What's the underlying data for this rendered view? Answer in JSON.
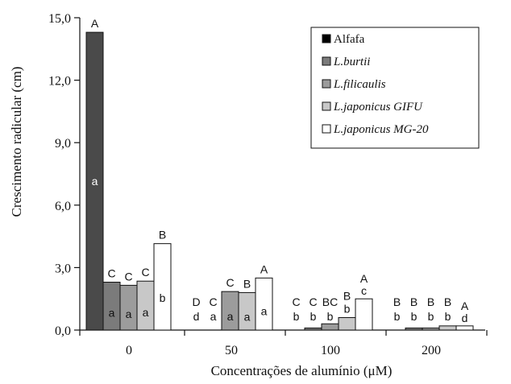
{
  "chart_data": {
    "type": "bar",
    "ylabel": "Crescimento radicular (cm)",
    "xlabel": "Concentrações de alumínio (μM)",
    "ylim": [
      0,
      15
    ],
    "yticks": [
      "0,0",
      "3,0",
      "6,0",
      "9,0",
      "12,0",
      "15,0"
    ],
    "categories": [
      "0",
      "50",
      "100",
      "200"
    ],
    "legend_position": "top-right",
    "series": [
      {
        "name": "Alfafa",
        "color": "#4a4a4a",
        "values": [
          14.3,
          0,
          0,
          0
        ],
        "upper": [
          "A",
          "",
          "",
          ""
        ],
        "lower": [
          "a",
          "",
          "",
          ""
        ]
      },
      {
        "name": "L.burtii",
        "color": "#7b7b7b",
        "values": [
          2.3,
          0,
          0.1,
          0.1
        ],
        "upper": [
          "C",
          "D",
          "C",
          "B"
        ],
        "lower": [
          "a",
          "d",
          "b",
          "b"
        ]
      },
      {
        "name": "L.filicaulis",
        "color": "#9c9c9c",
        "values": [
          2.15,
          1.85,
          0.3,
          0.1
        ],
        "upper": [
          "C",
          "C",
          "C",
          "B"
        ],
        "lower": [
          "a",
          "a",
          "b",
          "b"
        ]
      },
      {
        "name": "L.japonicus GIFU",
        "color": "#c8c8c8",
        "values": [
          2.35,
          1.8,
          0.6,
          0.2
        ],
        "upper": [
          "C",
          "C",
          "BC",
          "B"
        ],
        "lower": [
          "a",
          "a",
          "b",
          "b"
        ]
      },
      {
        "name": "L.japonicus MG-20",
        "color": "#ffffff",
        "values": [
          4.15,
          2.5,
          1.5,
          0.2
        ],
        "upper": [
          "B",
          "B",
          "B",
          "B"
        ],
        "lower": [
          "b",
          "a",
          "b",
          "b"
        ]
      }
    ],
    "letters": [
      {
        "cat": 0,
        "bar": 0,
        "upper": "A",
        "lower": "a",
        "lowerMid": true
      },
      {
        "cat": 0,
        "bar": 1,
        "upper": "C",
        "lower": "a"
      },
      {
        "cat": 0,
        "bar": 2,
        "upper": "C",
        "lower": "a"
      },
      {
        "cat": 0,
        "bar": 3,
        "upper": "C",
        "lower": "a"
      },
      {
        "cat": 0,
        "bar": 4,
        "upper": "B",
        "lower": "b"
      },
      {
        "cat": 1,
        "bar": 0,
        "upper": "D",
        "lower": "d"
      },
      {
        "cat": 1,
        "bar": 1,
        "upper": "C",
        "lower": "a"
      },
      {
        "cat": 1,
        "bar": 2,
        "upper": "C",
        "lower": "a"
      },
      {
        "cat": 1,
        "bar": 3,
        "upper": "B",
        "lower": "a"
      },
      {
        "cat": 1,
        "bar": 4,
        "upper": "A",
        "lower": "a"
      },
      {
        "cat": 2,
        "bar": 0,
        "upper": "C",
        "lower": "b"
      },
      {
        "cat": 2,
        "bar": 1,
        "upper": "C",
        "lower": "b"
      },
      {
        "cat": 2,
        "bar": 2,
        "upper": "BC",
        "lower": "b"
      },
      {
        "cat": 2,
        "bar": 3,
        "upper": "B",
        "lower": "b"
      },
      {
        "cat": 2,
        "bar": 4,
        "upper": "A",
        "lower": "c"
      },
      {
        "cat": 3,
        "bar": 0,
        "upper": "B",
        "lower": "b"
      },
      {
        "cat": 3,
        "bar": 1,
        "upper": "B",
        "lower": "b"
      },
      {
        "cat": 3,
        "bar": 2,
        "upper": "B",
        "lower": "b"
      },
      {
        "cat": 3,
        "bar": 3,
        "upper": "B",
        "lower": "b"
      },
      {
        "cat": 3,
        "bar": 4,
        "upper": "A",
        "lower": "d"
      }
    ]
  }
}
